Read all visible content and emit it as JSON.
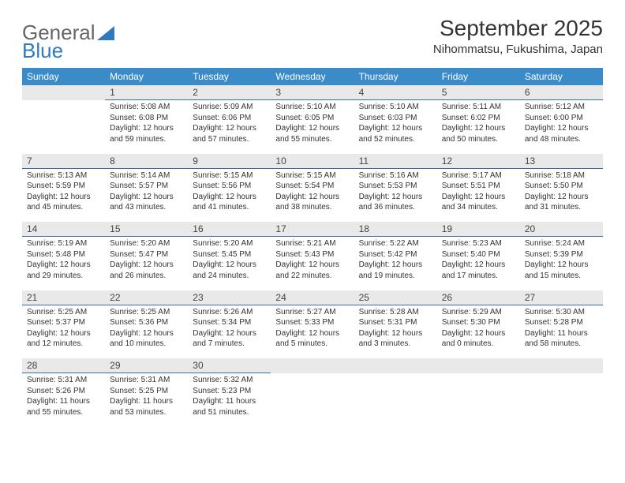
{
  "logo": {
    "text1": "General",
    "text2": "Blue"
  },
  "title": "September 2025",
  "location": "Nihommatsu, Fukushima, Japan",
  "colors": {
    "header_bg": "#3b8bc9",
    "header_text": "#ffffff",
    "daynum_bg": "#e9e9e9",
    "daynum_border": "#3b6ea0",
    "text": "#333333",
    "logo_blue": "#2f7abf"
  },
  "weekdays": [
    "Sunday",
    "Monday",
    "Tuesday",
    "Wednesday",
    "Thursday",
    "Friday",
    "Saturday"
  ],
  "weeks": [
    {
      "nums": [
        "",
        "1",
        "2",
        "3",
        "4",
        "5",
        "6"
      ],
      "cells": [
        null,
        {
          "sunrise": "5:08 AM",
          "sunset": "6:08 PM",
          "daylight": "12 hours and 59 minutes."
        },
        {
          "sunrise": "5:09 AM",
          "sunset": "6:06 PM",
          "daylight": "12 hours and 57 minutes."
        },
        {
          "sunrise": "5:10 AM",
          "sunset": "6:05 PM",
          "daylight": "12 hours and 55 minutes."
        },
        {
          "sunrise": "5:10 AM",
          "sunset": "6:03 PM",
          "daylight": "12 hours and 52 minutes."
        },
        {
          "sunrise": "5:11 AM",
          "sunset": "6:02 PM",
          "daylight": "12 hours and 50 minutes."
        },
        {
          "sunrise": "5:12 AM",
          "sunset": "6:00 PM",
          "daylight": "12 hours and 48 minutes."
        }
      ]
    },
    {
      "nums": [
        "7",
        "8",
        "9",
        "10",
        "11",
        "12",
        "13"
      ],
      "cells": [
        {
          "sunrise": "5:13 AM",
          "sunset": "5:59 PM",
          "daylight": "12 hours and 45 minutes."
        },
        {
          "sunrise": "5:14 AM",
          "sunset": "5:57 PM",
          "daylight": "12 hours and 43 minutes."
        },
        {
          "sunrise": "5:15 AM",
          "sunset": "5:56 PM",
          "daylight": "12 hours and 41 minutes."
        },
        {
          "sunrise": "5:15 AM",
          "sunset": "5:54 PM",
          "daylight": "12 hours and 38 minutes."
        },
        {
          "sunrise": "5:16 AM",
          "sunset": "5:53 PM",
          "daylight": "12 hours and 36 minutes."
        },
        {
          "sunrise": "5:17 AM",
          "sunset": "5:51 PM",
          "daylight": "12 hours and 34 minutes."
        },
        {
          "sunrise": "5:18 AM",
          "sunset": "5:50 PM",
          "daylight": "12 hours and 31 minutes."
        }
      ]
    },
    {
      "nums": [
        "14",
        "15",
        "16",
        "17",
        "18",
        "19",
        "20"
      ],
      "cells": [
        {
          "sunrise": "5:19 AM",
          "sunset": "5:48 PM",
          "daylight": "12 hours and 29 minutes."
        },
        {
          "sunrise": "5:20 AM",
          "sunset": "5:47 PM",
          "daylight": "12 hours and 26 minutes."
        },
        {
          "sunrise": "5:20 AM",
          "sunset": "5:45 PM",
          "daylight": "12 hours and 24 minutes."
        },
        {
          "sunrise": "5:21 AM",
          "sunset": "5:43 PM",
          "daylight": "12 hours and 22 minutes."
        },
        {
          "sunrise": "5:22 AM",
          "sunset": "5:42 PM",
          "daylight": "12 hours and 19 minutes."
        },
        {
          "sunrise": "5:23 AM",
          "sunset": "5:40 PM",
          "daylight": "12 hours and 17 minutes."
        },
        {
          "sunrise": "5:24 AM",
          "sunset": "5:39 PM",
          "daylight": "12 hours and 15 minutes."
        }
      ]
    },
    {
      "nums": [
        "21",
        "22",
        "23",
        "24",
        "25",
        "26",
        "27"
      ],
      "cells": [
        {
          "sunrise": "5:25 AM",
          "sunset": "5:37 PM",
          "daylight": "12 hours and 12 minutes."
        },
        {
          "sunrise": "5:25 AM",
          "sunset": "5:36 PM",
          "daylight": "12 hours and 10 minutes."
        },
        {
          "sunrise": "5:26 AM",
          "sunset": "5:34 PM",
          "daylight": "12 hours and 7 minutes."
        },
        {
          "sunrise": "5:27 AM",
          "sunset": "5:33 PM",
          "daylight": "12 hours and 5 minutes."
        },
        {
          "sunrise": "5:28 AM",
          "sunset": "5:31 PM",
          "daylight": "12 hours and 3 minutes."
        },
        {
          "sunrise": "5:29 AM",
          "sunset": "5:30 PM",
          "daylight": "12 hours and 0 minutes."
        },
        {
          "sunrise": "5:30 AM",
          "sunset": "5:28 PM",
          "daylight": "11 hours and 58 minutes."
        }
      ]
    },
    {
      "nums": [
        "28",
        "29",
        "30",
        "",
        "",
        "",
        ""
      ],
      "cells": [
        {
          "sunrise": "5:31 AM",
          "sunset": "5:26 PM",
          "daylight": "11 hours and 55 minutes."
        },
        {
          "sunrise": "5:31 AM",
          "sunset": "5:25 PM",
          "daylight": "11 hours and 53 minutes."
        },
        {
          "sunrise": "5:32 AM",
          "sunset": "5:23 PM",
          "daylight": "11 hours and 51 minutes."
        },
        null,
        null,
        null,
        null
      ]
    }
  ],
  "labels": {
    "sunrise": "Sunrise:",
    "sunset": "Sunset:",
    "daylight": "Daylight:"
  }
}
